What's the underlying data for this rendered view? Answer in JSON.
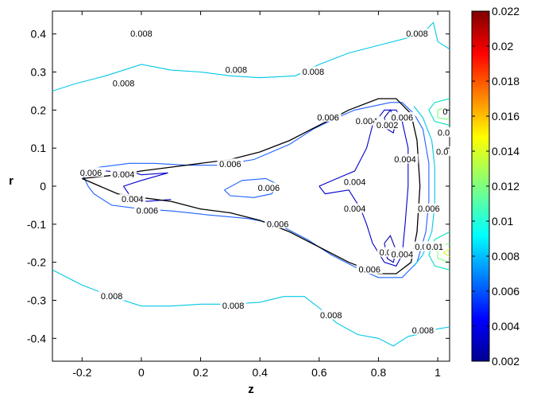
{
  "chart_data": {
    "type": "contour",
    "title": "",
    "xlabel": "z",
    "ylabel": "r",
    "xlim": [
      -0.3,
      1.04
    ],
    "ylim": [
      -0.46,
      0.46
    ],
    "x_ticks": [
      "-0.2",
      "0",
      "0.2",
      "0.4",
      "0.6",
      "0.8",
      "1"
    ],
    "x_tick_values": [
      -0.2,
      0,
      0.2,
      0.4,
      0.6,
      0.8,
      1.0
    ],
    "y_ticks": [
      "0.4",
      "0.3",
      "0.2",
      "0.1",
      "0",
      "-0.1",
      "-0.2",
      "-0.3",
      "-0.4"
    ],
    "y_tick_values": [
      0.4,
      0.3,
      0.2,
      0.1,
      0,
      -0.1,
      -0.2,
      -0.3,
      -0.4
    ],
    "colorbar": {
      "colormap": "jet",
      "min": 0.002,
      "max": 0.022,
      "tick_labels": [
        "0.022",
        "0.02",
        "0.018",
        "0.016",
        "0.014",
        "0.012",
        "0.01",
        "0.008",
        "0.006",
        "0.004",
        "0.002"
      ],
      "tick_values": [
        0.022,
        0.02,
        0.018,
        0.016,
        0.014,
        0.012,
        0.01,
        0.008,
        0.006,
        0.004,
        0.002
      ]
    },
    "contour_labels": [
      {
        "text": "0.008",
        "x": 0.0,
        "y": 0.4,
        "level": 0.008,
        "color": "#00c8e6"
      },
      {
        "text": "0.008",
        "x": -0.06,
        "y": 0.27,
        "level": 0.008,
        "color": "#00c8e6"
      },
      {
        "text": "0.008",
        "x": 0.58,
        "y": 0.3,
        "level": 0.008,
        "color": "#00c8e6"
      },
      {
        "text": "0.008",
        "x": 0.32,
        "y": 0.305,
        "level": 0.008,
        "color": "#00c8e6"
      },
      {
        "text": "0.008",
        "x": 0.93,
        "y": 0.4,
        "level": 0.008,
        "color": "#00c8e6"
      },
      {
        "text": "0.006",
        "x": -0.17,
        "y": 0.035,
        "level": 0.006,
        "color": "#1e60ff"
      },
      {
        "text": "0.004",
        "x": -0.06,
        "y": 0.03,
        "level": 0.004,
        "color": "#0000cc"
      },
      {
        "text": "0.004",
        "x": -0.03,
        "y": -0.035,
        "level": 0.004,
        "color": "#0000cc"
      },
      {
        "text": "0.006",
        "x": 0.02,
        "y": -0.065,
        "level": 0.006,
        "color": "#1e60ff"
      },
      {
        "text": "0.006",
        "x": 0.3,
        "y": 0.058,
        "level": 0.006,
        "color": "#1e60ff"
      },
      {
        "text": "0.006",
        "x": 0.43,
        "y": -0.005,
        "level": 0.006,
        "color": "#1e60ff"
      },
      {
        "text": "0.006",
        "x": 0.46,
        "y": -0.1,
        "level": 0.006,
        "color": "#1e60ff"
      },
      {
        "text": "0.006",
        "x": 0.63,
        "y": 0.18,
        "level": 0.006,
        "color": "#1e60ff"
      },
      {
        "text": "0.004",
        "x": 0.72,
        "y": 0.01,
        "level": 0.004,
        "color": "#0000cc"
      },
      {
        "text": "0.004",
        "x": 0.72,
        "y": -0.06,
        "level": 0.004,
        "color": "#0000cc"
      },
      {
        "text": "0.004",
        "x": 0.76,
        "y": 0.17,
        "level": 0.004,
        "color": "#0000cc"
      },
      {
        "text": "0.002",
        "x": 0.83,
        "y": 0.16,
        "level": 0.002,
        "color": "#0000aa"
      },
      {
        "text": "0.006",
        "x": 0.88,
        "y": 0.18,
        "level": 0.006,
        "color": "#1e60ff"
      },
      {
        "text": "0.004",
        "x": 0.89,
        "y": 0.07,
        "level": 0.004,
        "color": "#0000cc"
      },
      {
        "text": "0.006",
        "x": 0.97,
        "y": -0.06,
        "level": 0.006,
        "color": "#1e60ff"
      },
      {
        "text": "0.006",
        "x": 0.77,
        "y": -0.22,
        "level": 0.006,
        "color": "#1e60ff"
      },
      {
        "text": "0.002",
        "x": 0.84,
        "y": -0.175,
        "level": 0.002,
        "color": "#0000aa"
      },
      {
        "text": "0.004",
        "x": 0.88,
        "y": -0.18,
        "level": 0.004,
        "color": "#0000cc"
      },
      {
        "text": "0.008",
        "x": 0.96,
        "y": -0.16,
        "level": 0.008,
        "color": "#00c8e6"
      },
      {
        "text": "0.01",
        "x": 0.99,
        "y": -0.16,
        "level": 0.01,
        "color": "#00e0c0"
      },
      {
        "text": "0.008",
        "x": -0.1,
        "y": -0.29,
        "level": 0.008,
        "color": "#00c8e6"
      },
      {
        "text": "0.008",
        "x": 0.31,
        "y": -0.315,
        "level": 0.008,
        "color": "#00c8e6"
      },
      {
        "text": "0.008",
        "x": 0.64,
        "y": -0.34,
        "level": 0.008,
        "color": "#00c8e6"
      },
      {
        "text": "0.008",
        "x": 0.95,
        "y": -0.38,
        "level": 0.008,
        "color": "#00c8e6"
      },
      {
        "text": "0",
        "x": 1.025,
        "y": 0.195,
        "level": 0.008,
        "color": "#00c8e6"
      },
      {
        "text": "0.0",
        "x": 1.02,
        "y": 0.14,
        "level": 0.008,
        "color": "#00c8e6"
      },
      {
        "text": "0.0",
        "x": 1.015,
        "y": 0.09,
        "level": 0.008,
        "color": "#00c8e6"
      }
    ],
    "contour_lines": [
      {
        "level": 0.008,
        "color": "#00c8e6",
        "points": [
          [
            -0.3,
            0.25
          ],
          [
            -0.22,
            0.27
          ],
          [
            -0.12,
            0.29
          ],
          [
            0.0,
            0.32
          ],
          [
            0.1,
            0.305
          ],
          [
            0.2,
            0.3
          ],
          [
            0.3,
            0.29
          ],
          [
            0.4,
            0.285
          ],
          [
            0.52,
            0.29
          ],
          [
            0.6,
            0.32
          ],
          [
            0.7,
            0.35
          ],
          [
            0.8,
            0.37
          ],
          [
            0.9,
            0.39
          ],
          [
            0.96,
            0.41
          ],
          [
            0.985,
            0.43
          ],
          [
            1.0,
            0.38
          ],
          [
            1.04,
            0.36
          ]
        ]
      },
      {
        "level": 0.008,
        "color": "#00c8e6",
        "points": [
          [
            -0.3,
            -0.22
          ],
          [
            -0.2,
            -0.26
          ],
          [
            -0.1,
            -0.29
          ],
          [
            0.0,
            -0.315
          ],
          [
            0.1,
            -0.315
          ],
          [
            0.2,
            -0.31
          ],
          [
            0.3,
            -0.31
          ],
          [
            0.4,
            -0.305
          ],
          [
            0.48,
            -0.29
          ],
          [
            0.55,
            -0.29
          ],
          [
            0.6,
            -0.32
          ],
          [
            0.66,
            -0.36
          ],
          [
            0.73,
            -0.39
          ],
          [
            0.8,
            -0.4
          ],
          [
            0.85,
            -0.42
          ],
          [
            0.9,
            -0.395
          ],
          [
            0.96,
            -0.385
          ],
          [
            1.0,
            -0.375
          ],
          [
            1.04,
            -0.37
          ]
        ]
      },
      {
        "level": 0.004,
        "color": "#0000cc",
        "points": [
          [
            -0.12,
            0.04
          ],
          [
            -0.02,
            0.035
          ],
          [
            0.0,
            0.03
          ],
          [
            0.09,
            0.035
          ],
          [
            0.0,
            0.015
          ],
          [
            -0.06,
            0.0
          ],
          [
            -0.03,
            -0.035
          ],
          [
            0.02,
            -0.04
          ],
          [
            0.1,
            -0.035
          ]
        ]
      },
      {
        "level": 0.006,
        "color": "#1e60ff",
        "points": [
          [
            -0.2,
            0.035
          ],
          [
            -0.14,
            0.05
          ],
          [
            -0.04,
            0.06
          ],
          [
            0.04,
            0.06
          ],
          [
            0.16,
            0.055
          ],
          [
            0.26,
            0.055
          ],
          [
            0.38,
            0.07
          ],
          [
            0.5,
            0.11
          ],
          [
            0.58,
            0.15
          ],
          [
            0.66,
            0.18
          ],
          [
            0.72,
            0.2
          ],
          [
            0.78,
            0.21
          ],
          [
            0.84,
            0.22
          ],
          [
            0.88,
            0.22
          ],
          [
            0.92,
            0.19
          ],
          [
            0.95,
            0.15
          ],
          [
            0.97,
            0.06
          ],
          [
            0.97,
            -0.04
          ],
          [
            0.96,
            -0.12
          ],
          [
            0.93,
            -0.2
          ],
          [
            0.88,
            -0.24
          ],
          [
            0.8,
            -0.24
          ],
          [
            0.74,
            -0.22
          ],
          [
            0.64,
            -0.18
          ],
          [
            0.56,
            -0.14
          ],
          [
            0.46,
            -0.1
          ],
          [
            0.36,
            -0.085
          ],
          [
            0.22,
            -0.075
          ],
          [
            0.1,
            -0.065
          ],
          [
            0.0,
            -0.06
          ],
          [
            -0.1,
            -0.05
          ],
          [
            -0.16,
            -0.02
          ],
          [
            -0.18,
            0.0
          ],
          [
            -0.2,
            0.035
          ]
        ]
      },
      {
        "level": 0.006,
        "color": "#1e60ff",
        "points": [
          [
            0.28,
            -0.01
          ],
          [
            0.34,
            0.015
          ],
          [
            0.42,
            0.02
          ],
          [
            0.46,
            0.005
          ],
          [
            0.44,
            -0.02
          ],
          [
            0.38,
            -0.03
          ],
          [
            0.3,
            -0.025
          ],
          [
            0.28,
            -0.01
          ]
        ]
      },
      {
        "level": 0.004,
        "color": "#0000cc",
        "points": [
          [
            0.6,
            0.0
          ],
          [
            0.66,
            0.02
          ],
          [
            0.72,
            0.04
          ],
          [
            0.76,
            0.1
          ],
          [
            0.78,
            0.16
          ],
          [
            0.82,
            0.2
          ],
          [
            0.86,
            0.2
          ],
          [
            0.88,
            0.17
          ],
          [
            0.9,
            0.1
          ],
          [
            0.9,
            0.0
          ],
          [
            0.89,
            -0.1
          ],
          [
            0.88,
            -0.18
          ],
          [
            0.86,
            -0.21
          ],
          [
            0.82,
            -0.2
          ],
          [
            0.78,
            -0.15
          ],
          [
            0.76,
            -0.1
          ],
          [
            0.74,
            -0.06
          ],
          [
            0.7,
            -0.01
          ],
          [
            0.66,
            -0.015
          ],
          [
            0.62,
            -0.02
          ],
          [
            0.6,
            0.0
          ]
        ]
      },
      {
        "level": 0.002,
        "color": "#0000aa",
        "points": [
          [
            0.82,
            0.18
          ],
          [
            0.84,
            0.2
          ],
          [
            0.86,
            0.17
          ],
          [
            0.85,
            0.14
          ],
          [
            0.83,
            0.15
          ],
          [
            0.82,
            0.18
          ]
        ]
      },
      {
        "level": 0.002,
        "color": "#0000aa",
        "points": [
          [
            0.82,
            -0.15
          ],
          [
            0.84,
            -0.13
          ],
          [
            0.86,
            -0.17
          ],
          [
            0.85,
            -0.2
          ],
          [
            0.83,
            -0.19
          ],
          [
            0.82,
            -0.15
          ]
        ]
      },
      {
        "level": 0.008,
        "color": "#00c8e6",
        "points": [
          [
            0.92,
            0.21
          ],
          [
            0.95,
            0.18
          ],
          [
            0.98,
            0.12
          ],
          [
            0.99,
            0.05
          ],
          [
            0.99,
            -0.05
          ],
          [
            0.98,
            -0.12
          ],
          [
            0.95,
            -0.18
          ],
          [
            0.92,
            -0.21
          ]
        ]
      },
      {
        "level": 0.01,
        "color": "#00e0c0",
        "points": [
          [
            1.04,
            0.23
          ],
          [
            0.99,
            0.22
          ],
          [
            0.97,
            0.2
          ],
          [
            0.99,
            0.17
          ],
          [
            1.04,
            0.16
          ]
        ]
      },
      {
        "level": 0.012,
        "color": "#7cff7c",
        "points": [
          [
            1.04,
            0.21
          ],
          [
            1.0,
            0.2
          ],
          [
            1.0,
            0.18
          ],
          [
            1.04,
            0.175
          ]
        ]
      },
      {
        "level": 0.01,
        "color": "#00e0c0",
        "points": [
          [
            1.04,
            -0.12
          ],
          [
            0.99,
            -0.14
          ],
          [
            0.97,
            -0.18
          ],
          [
            0.99,
            -0.21
          ],
          [
            1.04,
            -0.22
          ]
        ]
      },
      {
        "level": 0.012,
        "color": "#7cff7c",
        "points": [
          [
            1.04,
            -0.15
          ],
          [
            1.0,
            -0.16
          ],
          [
            1.0,
            -0.19
          ],
          [
            1.04,
            -0.2
          ]
        ]
      },
      {
        "level": 0.014,
        "color": "#d0ff30",
        "points": [
          [
            1.04,
            -0.165
          ],
          [
            1.02,
            -0.175
          ],
          [
            1.04,
            -0.185
          ]
        ]
      }
    ],
    "boundary": {
      "color": "#000000",
      "points": [
        [
          -0.2,
          0.02
        ],
        [
          -0.08,
          0.03
        ],
        [
          0.0,
          0.04
        ],
        [
          0.1,
          0.05
        ],
        [
          0.2,
          0.06
        ],
        [
          0.3,
          0.07
        ],
        [
          0.4,
          0.09
        ],
        [
          0.5,
          0.12
        ],
        [
          0.6,
          0.16
        ],
        [
          0.7,
          0.2
        ],
        [
          0.8,
          0.23
        ],
        [
          0.86,
          0.23
        ],
        [
          0.91,
          0.19
        ],
        [
          0.93,
          0.12
        ],
        [
          0.94,
          0.0
        ],
        [
          0.93,
          -0.12
        ],
        [
          0.91,
          -0.2
        ],
        [
          0.86,
          -0.23
        ],
        [
          0.8,
          -0.23
        ],
        [
          0.7,
          -0.2
        ],
        [
          0.6,
          -0.16
        ],
        [
          0.5,
          -0.12
        ],
        [
          0.4,
          -0.09
        ],
        [
          0.3,
          -0.07
        ],
        [
          0.2,
          -0.06
        ],
        [
          0.1,
          -0.04
        ],
        [
          0.0,
          -0.03
        ],
        [
          -0.08,
          -0.02
        ],
        [
          -0.2,
          0.02
        ]
      ]
    }
  }
}
